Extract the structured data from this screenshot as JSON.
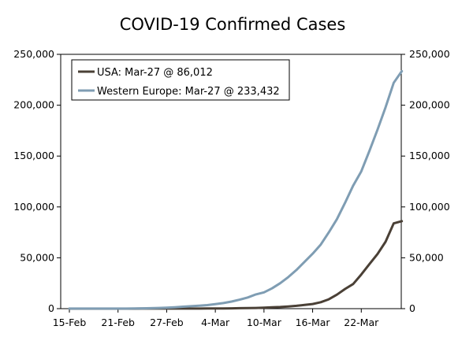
{
  "chart_data": {
    "type": "line",
    "title": "COVID-19 Confirmed Cases",
    "xlabel": "",
    "ylabel": "",
    "x": [
      "15-Feb",
      "16-Feb",
      "17-Feb",
      "18-Feb",
      "19-Feb",
      "20-Feb",
      "21-Feb",
      "22-Feb",
      "23-Feb",
      "24-Feb",
      "25-Feb",
      "26-Feb",
      "27-Feb",
      "28-Feb",
      "29-Feb",
      "1-Mar",
      "2-Mar",
      "3-Mar",
      "4-Mar",
      "5-Mar",
      "6-Mar",
      "7-Mar",
      "8-Mar",
      "9-Mar",
      "10-Mar",
      "11-Mar",
      "12-Mar",
      "13-Mar",
      "14-Mar",
      "15-Mar",
      "16-Mar",
      "17-Mar",
      "18-Mar",
      "19-Mar",
      "20-Mar",
      "21-Mar",
      "22-Mar",
      "23-Mar",
      "24-Mar",
      "25-Mar",
      "26-Mar",
      "27-Mar"
    ],
    "x_tick_labels": [
      "15-Feb",
      "21-Feb",
      "27-Feb",
      "4-Mar",
      "10-Mar",
      "16-Mar",
      "22-Mar"
    ],
    "y_tick_labels": [
      "0",
      "50,000",
      "100,000",
      "150,000",
      "200,000",
      "250,000"
    ],
    "ylim": [
      0,
      250000
    ],
    "grid": false,
    "legend_position": "top-left",
    "series": [
      {
        "name": "USA: Mar-27 @ 86,012",
        "color": "#4a4036",
        "values": [
          13,
          13,
          13,
          13,
          13,
          13,
          15,
          15,
          35,
          53,
          53,
          59,
          60,
          62,
          70,
          76,
          100,
          122,
          153,
          221,
          319,
          435,
          541,
          704,
          994,
          1301,
          1630,
          2183,
          2770,
          3613,
          4596,
          6344,
          9197,
          13779,
          19367,
          24192,
          33592,
          43781,
          53740,
          65778,
          83836,
          86012
        ]
      },
      {
        "name": "Western Europe: Mar-27 @ 233,432",
        "color": "#7f9db3",
        "values": [
          40,
          40,
          40,
          41,
          42,
          42,
          45,
          60,
          150,
          300,
          450,
          700,
          1000,
          1400,
          1900,
          2400,
          2900,
          3500,
          4400,
          5500,
          7000,
          8800,
          11000,
          14000,
          16000,
          20000,
          25000,
          31000,
          38000,
          46000,
          54000,
          63000,
          75000,
          88000,
          104000,
          121000,
          135000,
          155000,
          176000,
          198000,
          222000,
          233432
        ]
      }
    ]
  }
}
